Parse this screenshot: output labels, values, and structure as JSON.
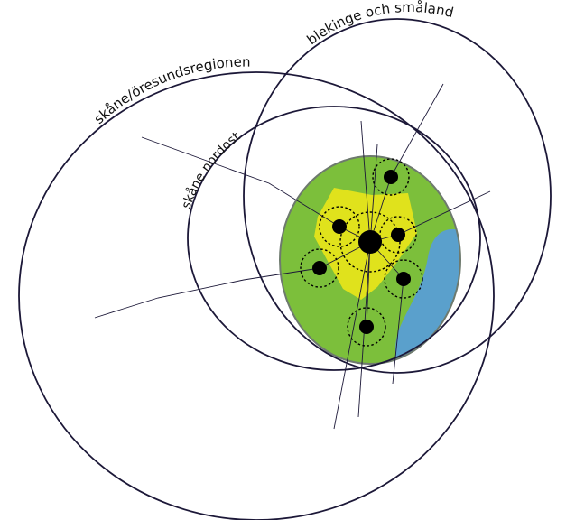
{
  "labels": {
    "outer_region": "skåne/öresundsregionen",
    "east_region": "blekinge och småland",
    "inner_region": "skåne nordost"
  },
  "colors": {
    "stroke": "#1c1838",
    "core_area": "#7cbf3b",
    "core_area_border": "#6e7a6e",
    "center_zone": "#e0e21c",
    "water": "#5aa0cc",
    "node": "#000000"
  }
}
